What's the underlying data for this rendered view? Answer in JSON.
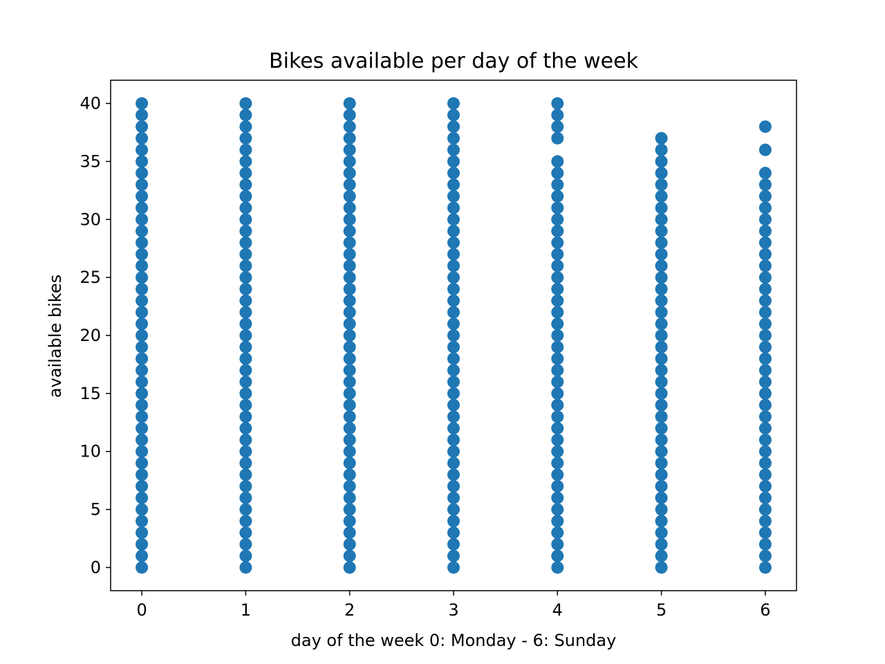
{
  "chart_data": {
    "type": "scatter",
    "title": "Bikes available per day of the week",
    "xlabel": "day of the week 0: Monday - 6: Sunday",
    "ylabel": "available bikes",
    "xlim": [
      -0.3,
      6.3
    ],
    "ylim": [
      -2,
      42
    ],
    "xticks": [
      "0",
      "1",
      "2",
      "3",
      "4",
      "5",
      "6"
    ],
    "yticks": [
      "0",
      "5",
      "10",
      "15",
      "20",
      "25",
      "30",
      "35",
      "40"
    ],
    "grid": false,
    "legend": "none",
    "marker_color": "#1f77b4",
    "series": [
      {
        "points": [
          {
            "x": 0,
            "y": [
              0,
              1,
              2,
              3,
              4,
              5,
              6,
              7,
              8,
              9,
              10,
              11,
              12,
              13,
              14,
              15,
              16,
              17,
              18,
              19,
              20,
              21,
              22,
              23,
              24,
              25,
              26,
              27,
              28,
              29,
              30,
              31,
              32,
              33,
              34,
              35,
              36,
              37,
              38,
              39,
              40
            ]
          },
          {
            "x": 1,
            "y": [
              0,
              1,
              2,
              3,
              4,
              5,
              6,
              7,
              8,
              9,
              10,
              11,
              12,
              13,
              14,
              15,
              16,
              17,
              18,
              19,
              20,
              21,
              22,
              23,
              24,
              25,
              26,
              27,
              28,
              29,
              30,
              31,
              32,
              33,
              34,
              35,
              36,
              37,
              38,
              39,
              40
            ]
          },
          {
            "x": 2,
            "y": [
              0,
              1,
              2,
              3,
              4,
              5,
              6,
              7,
              8,
              9,
              10,
              11,
              12,
              13,
              14,
              15,
              16,
              17,
              18,
              19,
              20,
              21,
              22,
              23,
              24,
              25,
              26,
              27,
              28,
              29,
              30,
              31,
              32,
              33,
              34,
              35,
              36,
              37,
              38,
              39,
              40
            ]
          },
          {
            "x": 3,
            "y": [
              0,
              1,
              2,
              3,
              4,
              5,
              6,
              7,
              8,
              9,
              10,
              11,
              12,
              13,
              14,
              15,
              16,
              17,
              18,
              19,
              20,
              21,
              22,
              23,
              24,
              25,
              26,
              27,
              28,
              29,
              30,
              31,
              32,
              33,
              34,
              35,
              36,
              37,
              38,
              39,
              40
            ]
          },
          {
            "x": 4,
            "y": [
              0,
              1,
              2,
              3,
              4,
              5,
              6,
              7,
              8,
              9,
              10,
              11,
              12,
              13,
              14,
              15,
              16,
              17,
              18,
              19,
              20,
              21,
              22,
              23,
              24,
              25,
              26,
              27,
              28,
              29,
              30,
              31,
              32,
              33,
              34,
              35,
              37,
              38,
              39,
              40
            ]
          },
          {
            "x": 5,
            "y": [
              0,
              1,
              2,
              3,
              4,
              5,
              6,
              7,
              8,
              9,
              10,
              11,
              12,
              13,
              14,
              15,
              16,
              17,
              18,
              19,
              20,
              21,
              22,
              23,
              24,
              25,
              26,
              27,
              28,
              29,
              30,
              31,
              32,
              33,
              34,
              35,
              36,
              37
            ]
          },
          {
            "x": 6,
            "y": [
              0,
              1,
              2,
              3,
              4,
              5,
              6,
              7,
              8,
              9,
              10,
              11,
              12,
              13,
              14,
              15,
              16,
              17,
              18,
              19,
              20,
              21,
              22,
              23,
              24,
              25,
              26,
              27,
              28,
              29,
              30,
              31,
              32,
              33,
              34,
              36,
              38
            ]
          }
        ]
      }
    ]
  }
}
